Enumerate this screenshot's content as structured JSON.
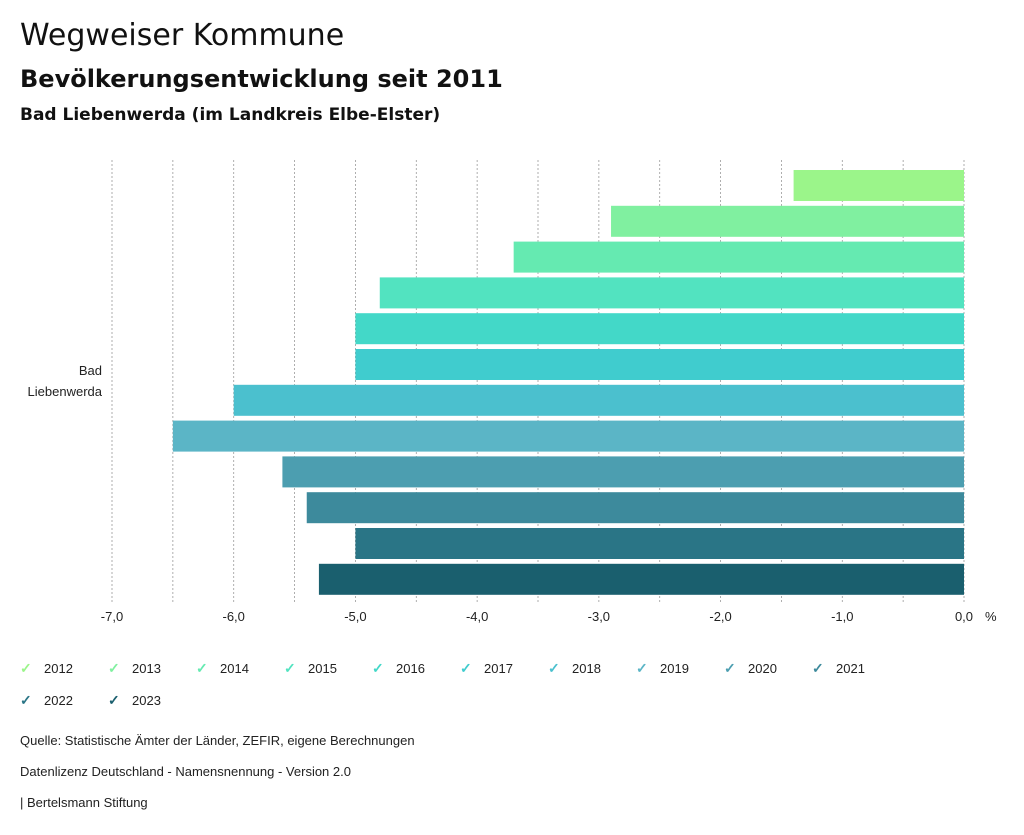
{
  "header": {
    "title": "Wegweiser Kommune",
    "subtitle": "Bevölkerungsentwicklung seit 2011",
    "region": "Bad Liebenwerda (im Landkreis Elbe-Elster)"
  },
  "chart_data": {
    "type": "bar",
    "orientation": "horizontal",
    "category": [
      "Bad",
      "Liebenwerda"
    ],
    "xlim": [
      -7.0,
      0.0
    ],
    "x_ticks": [
      "-7,0",
      "-6,0",
      "-5,0",
      "-4,0",
      "-3,0",
      "-2,0",
      "-1,0",
      "0,0"
    ],
    "x_tick_values": [
      -7,
      -6,
      -5,
      -4,
      -3,
      -2,
      -1,
      0
    ],
    "unit": "%",
    "grid": true,
    "series": [
      {
        "name": "2012",
        "value": -1.4,
        "color": "#9BF58A"
      },
      {
        "name": "2013",
        "value": -2.9,
        "color": "#80F0A0"
      },
      {
        "name": "2014",
        "value": -3.7,
        "color": "#65EAB1"
      },
      {
        "name": "2015",
        "value": -4.8,
        "color": "#52E3C0"
      },
      {
        "name": "2016",
        "value": -5.0,
        "color": "#43D8C8"
      },
      {
        "name": "2017",
        "value": -5.0,
        "color": "#40CCCE"
      },
      {
        "name": "2018",
        "value": -6.0,
        "color": "#4BC0CE"
      },
      {
        "name": "2019",
        "value": -6.5,
        "color": "#5BB5C6"
      },
      {
        "name": "2020",
        "value": -5.6,
        "color": "#4C9EB0"
      },
      {
        "name": "2021",
        "value": -5.4,
        "color": "#3D8A9C"
      },
      {
        "name": "2022",
        "value": -5.0,
        "color": "#2A7586"
      },
      {
        "name": "2023",
        "value": -5.3,
        "color": "#1A5F6E"
      }
    ]
  },
  "footer": {
    "source": "Quelle: Statistische Ämter der Länder, ZEFIR, eigene Berechnungen",
    "license": "Datenlizenz Deutschland - Namensnennung - Version 2.0",
    "publisher": "| Bertelsmann Stiftung"
  }
}
